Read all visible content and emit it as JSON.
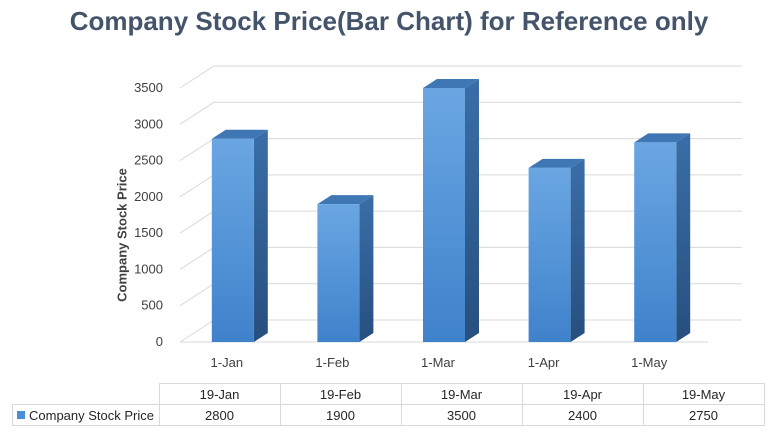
{
  "chart_data": {
    "type": "bar",
    "title": "Company Stock Price(Bar Chart) for Reference only",
    "ylabel": "Company Stock Price",
    "xlabel": "",
    "categories": [
      "1-Jan",
      "1-Feb",
      "1-Mar",
      "1-Apr",
      "1-May"
    ],
    "table_headers": [
      "19-Jan",
      "19-Feb",
      "19-Mar",
      "19-Apr",
      "19-May"
    ],
    "series": [
      {
        "name": "Company Stock Price",
        "values": [
          2800,
          1900,
          3500,
          2400,
          2750
        ]
      }
    ],
    "yticks": [
      "0",
      "500",
      "1000",
      "1500",
      "2000",
      "2500",
      "3000",
      "3500"
    ],
    "ylim": [
      0,
      3500
    ],
    "grid": true,
    "legend": "data-table",
    "style": "3d-column",
    "colors": {
      "bar_front": "#4a8fd6",
      "bar_side": "#2f5f94",
      "bar_top": "#3f77b4",
      "title": "#44546a"
    }
  }
}
